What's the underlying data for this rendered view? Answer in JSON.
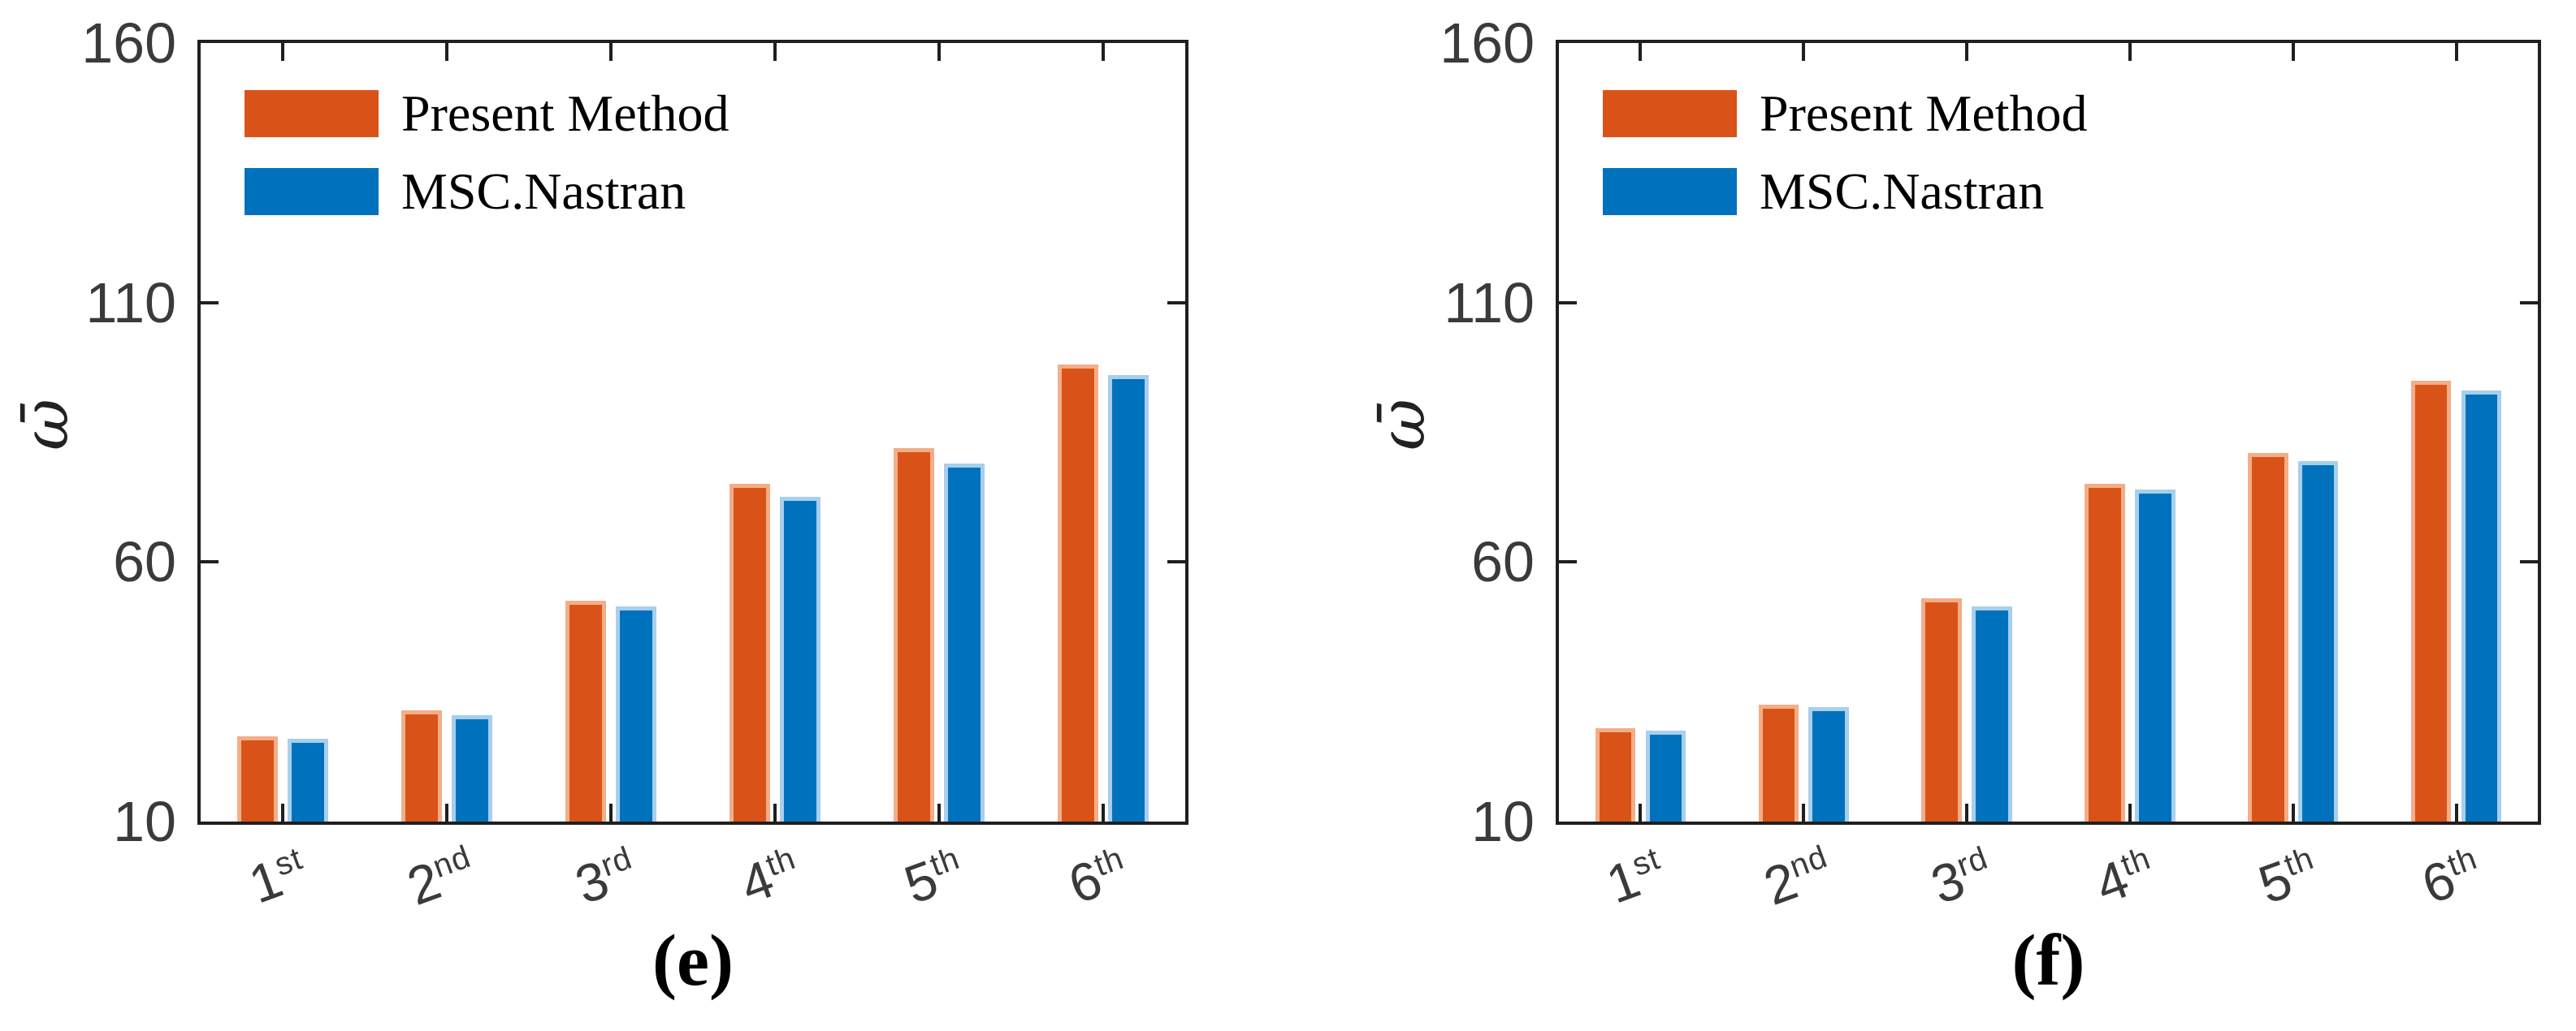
{
  "figure": {
    "background": "#ffffff",
    "axis_color": "#1f1f1f",
    "tick_label_color": "#3a3a3a",
    "text_color": "#000000"
  },
  "legend": {
    "items": [
      {
        "label": "Present Method",
        "color": "#D95319",
        "edge_color": "#F3AE88"
      },
      {
        "label": "MSC.Nastran",
        "color": "#0072BD",
        "edge_color": "#A8CFEC"
      }
    ]
  },
  "y_axis": {
    "label": "ω̄",
    "ticks": [
      10,
      60,
      110,
      160
    ]
  },
  "x_axis": {
    "categories": [
      {
        "base": "1",
        "sup": "st"
      },
      {
        "base": "2",
        "sup": "nd"
      },
      {
        "base": "3",
        "sup": "rd"
      },
      {
        "base": "4",
        "sup": "th"
      },
      {
        "base": "5",
        "sup": "th"
      },
      {
        "base": "6",
        "sup": "th"
      }
    ]
  },
  "chart_data": [
    {
      "type": "bar",
      "caption": "(e)",
      "title": "",
      "categories": [
        "1st",
        "2nd",
        "3rd",
        "4th",
        "5th",
        "6th"
      ],
      "series": [
        {
          "name": "Present Method",
          "color": "#D95319",
          "values": [
            26.5,
            31.5,
            52.5,
            75,
            82,
            98
          ]
        },
        {
          "name": "MSC.Nastran",
          "color": "#0072BD",
          "values": [
            26,
            30.5,
            51.5,
            72.5,
            79,
            96
          ]
        }
      ],
      "xlabel": "",
      "ylabel": "ω̄",
      "ylim": [
        10,
        160
      ],
      "yticks": [
        10,
        60,
        110,
        160
      ],
      "grid": false,
      "legend_position": "top-left"
    },
    {
      "type": "bar",
      "caption": "(f)",
      "title": "",
      "categories": [
        "1st",
        "2nd",
        "3rd",
        "4th",
        "5th",
        "6th"
      ],
      "series": [
        {
          "name": "Present Method",
          "color": "#D95319",
          "values": [
            28,
            32.5,
            53,
            75,
            81,
            95
          ]
        },
        {
          "name": "MSC.Nastran",
          "color": "#0072BD",
          "values": [
            27.5,
            32,
            51.5,
            74,
            79.5,
            93
          ]
        }
      ],
      "xlabel": "",
      "ylabel": "ω̄",
      "ylim": [
        10,
        160
      ],
      "yticks": [
        10,
        60,
        110,
        160
      ],
      "grid": false,
      "legend_position": "top-left"
    }
  ]
}
